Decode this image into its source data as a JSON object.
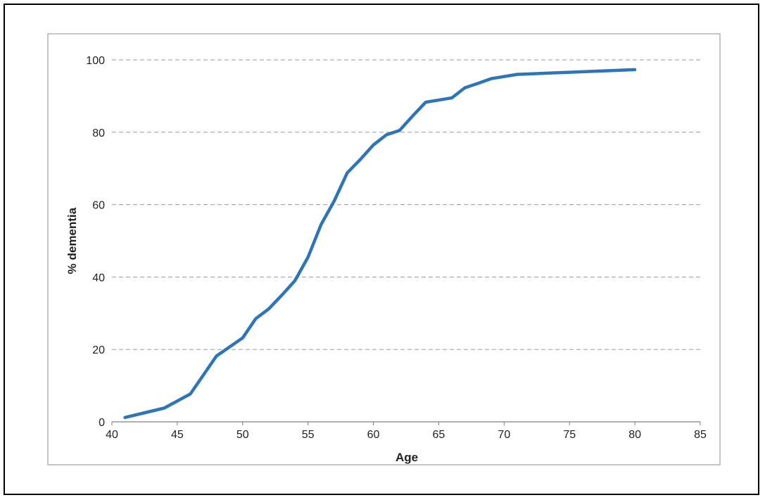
{
  "chart_data": {
    "type": "line",
    "xlabel": "Age",
    "ylabel": "% dementia",
    "xlim": [
      40,
      85
    ],
    "ylim": [
      0,
      100
    ],
    "x_ticks": [
      40,
      45,
      50,
      55,
      60,
      65,
      70,
      75,
      80,
      85
    ],
    "y_ticks": [
      0,
      20,
      40,
      60,
      80,
      100
    ],
    "grid": "horizontal dashed",
    "line_color": "#2E75B6",
    "series": [
      {
        "x": [
          41,
          44,
          46,
          48,
          50,
          51,
          52,
          53,
          54,
          55,
          56,
          57,
          58,
          59,
          60,
          61,
          62,
          63,
          64,
          66,
          67,
          68,
          69,
          71,
          80
        ],
        "y": [
          1.2,
          3.8,
          7.7,
          18.2,
          23.2,
          28.5,
          31.2,
          35.0,
          39.0,
          45.5,
          54.5,
          61.0,
          68.8,
          72.5,
          76.5,
          79.3,
          80.5,
          84.5,
          88.3,
          89.5,
          92.3,
          93.5,
          94.8,
          96.0,
          97.3
        ]
      }
    ]
  }
}
